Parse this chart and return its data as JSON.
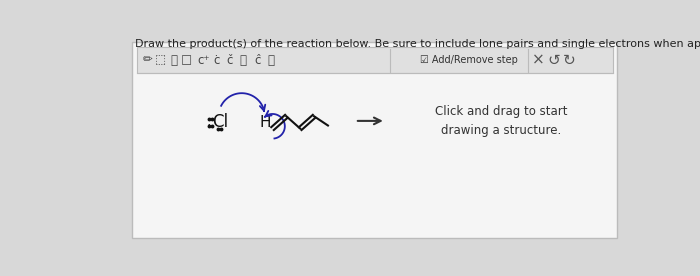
{
  "bg_color": "#d8d8d8",
  "panel_color": "#f5f5f5",
  "title_text": "Draw the product(s) of the reaction below. Be sure to include lone pairs and single electrons when applicable.",
  "title_fontsize": 8.0,
  "title_color": "#222222",
  "toolbar_bg": "#e0e0e0",
  "toolbar_border": "#bbbbbb",
  "add_remove_text": "Add/Remove step",
  "click_drag_text": "Click and drag to start\ndrawing a structure.",
  "arrow_color": "#333333",
  "curve_arrow_color": "#2222aa",
  "mol_color": "#111111"
}
